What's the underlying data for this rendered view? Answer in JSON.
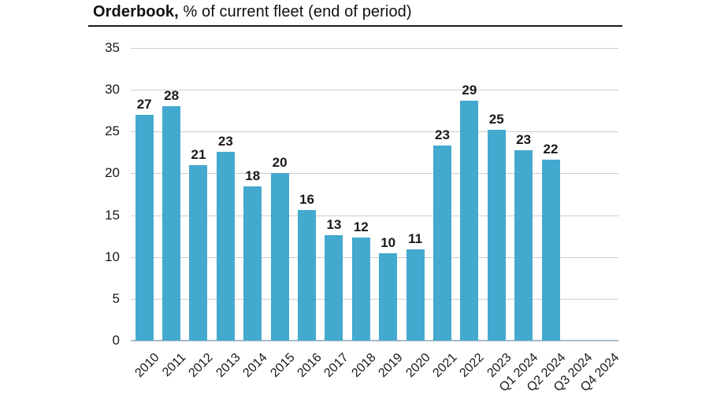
{
  "title": {
    "bold": "Orderbook,",
    "rest": " % of current fleet (end of period)"
  },
  "chart_data": {
    "type": "bar",
    "title": "Orderbook, % of current fleet (end of period)",
    "categories": [
      "2010",
      "2011",
      "2012",
      "2013",
      "2014",
      "2015",
      "2016",
      "2017",
      "2018",
      "2019",
      "2020",
      "2021",
      "2022",
      "2023",
      "Q1 2024",
      "Q2 2024",
      "Q3 2024",
      "Q4 2024"
    ],
    "values": [
      27,
      28,
      21,
      23,
      18,
      20,
      16,
      13,
      12,
      10,
      11,
      23,
      29,
      25,
      23,
      22,
      null,
      null
    ],
    "bar_heights_precise": [
      27.0,
      28.0,
      21.0,
      22.6,
      18.4,
      20.0,
      15.6,
      12.6,
      12.3,
      10.4,
      10.9,
      23.3,
      28.7,
      25.2,
      22.8,
      21.6,
      null,
      null
    ],
    "y_ticks": [
      0,
      5,
      10,
      15,
      20,
      25,
      30,
      35
    ],
    "ylim": [
      0,
      35
    ],
    "xlabel": "",
    "ylabel": "",
    "grid": "horizontal",
    "legend_position": "none",
    "data_labels": "above bars",
    "colors": {
      "bar": "#44a9cf",
      "gridline": "#cdcdcd",
      "baseline": "#a9bcca",
      "text": "#191919"
    }
  }
}
